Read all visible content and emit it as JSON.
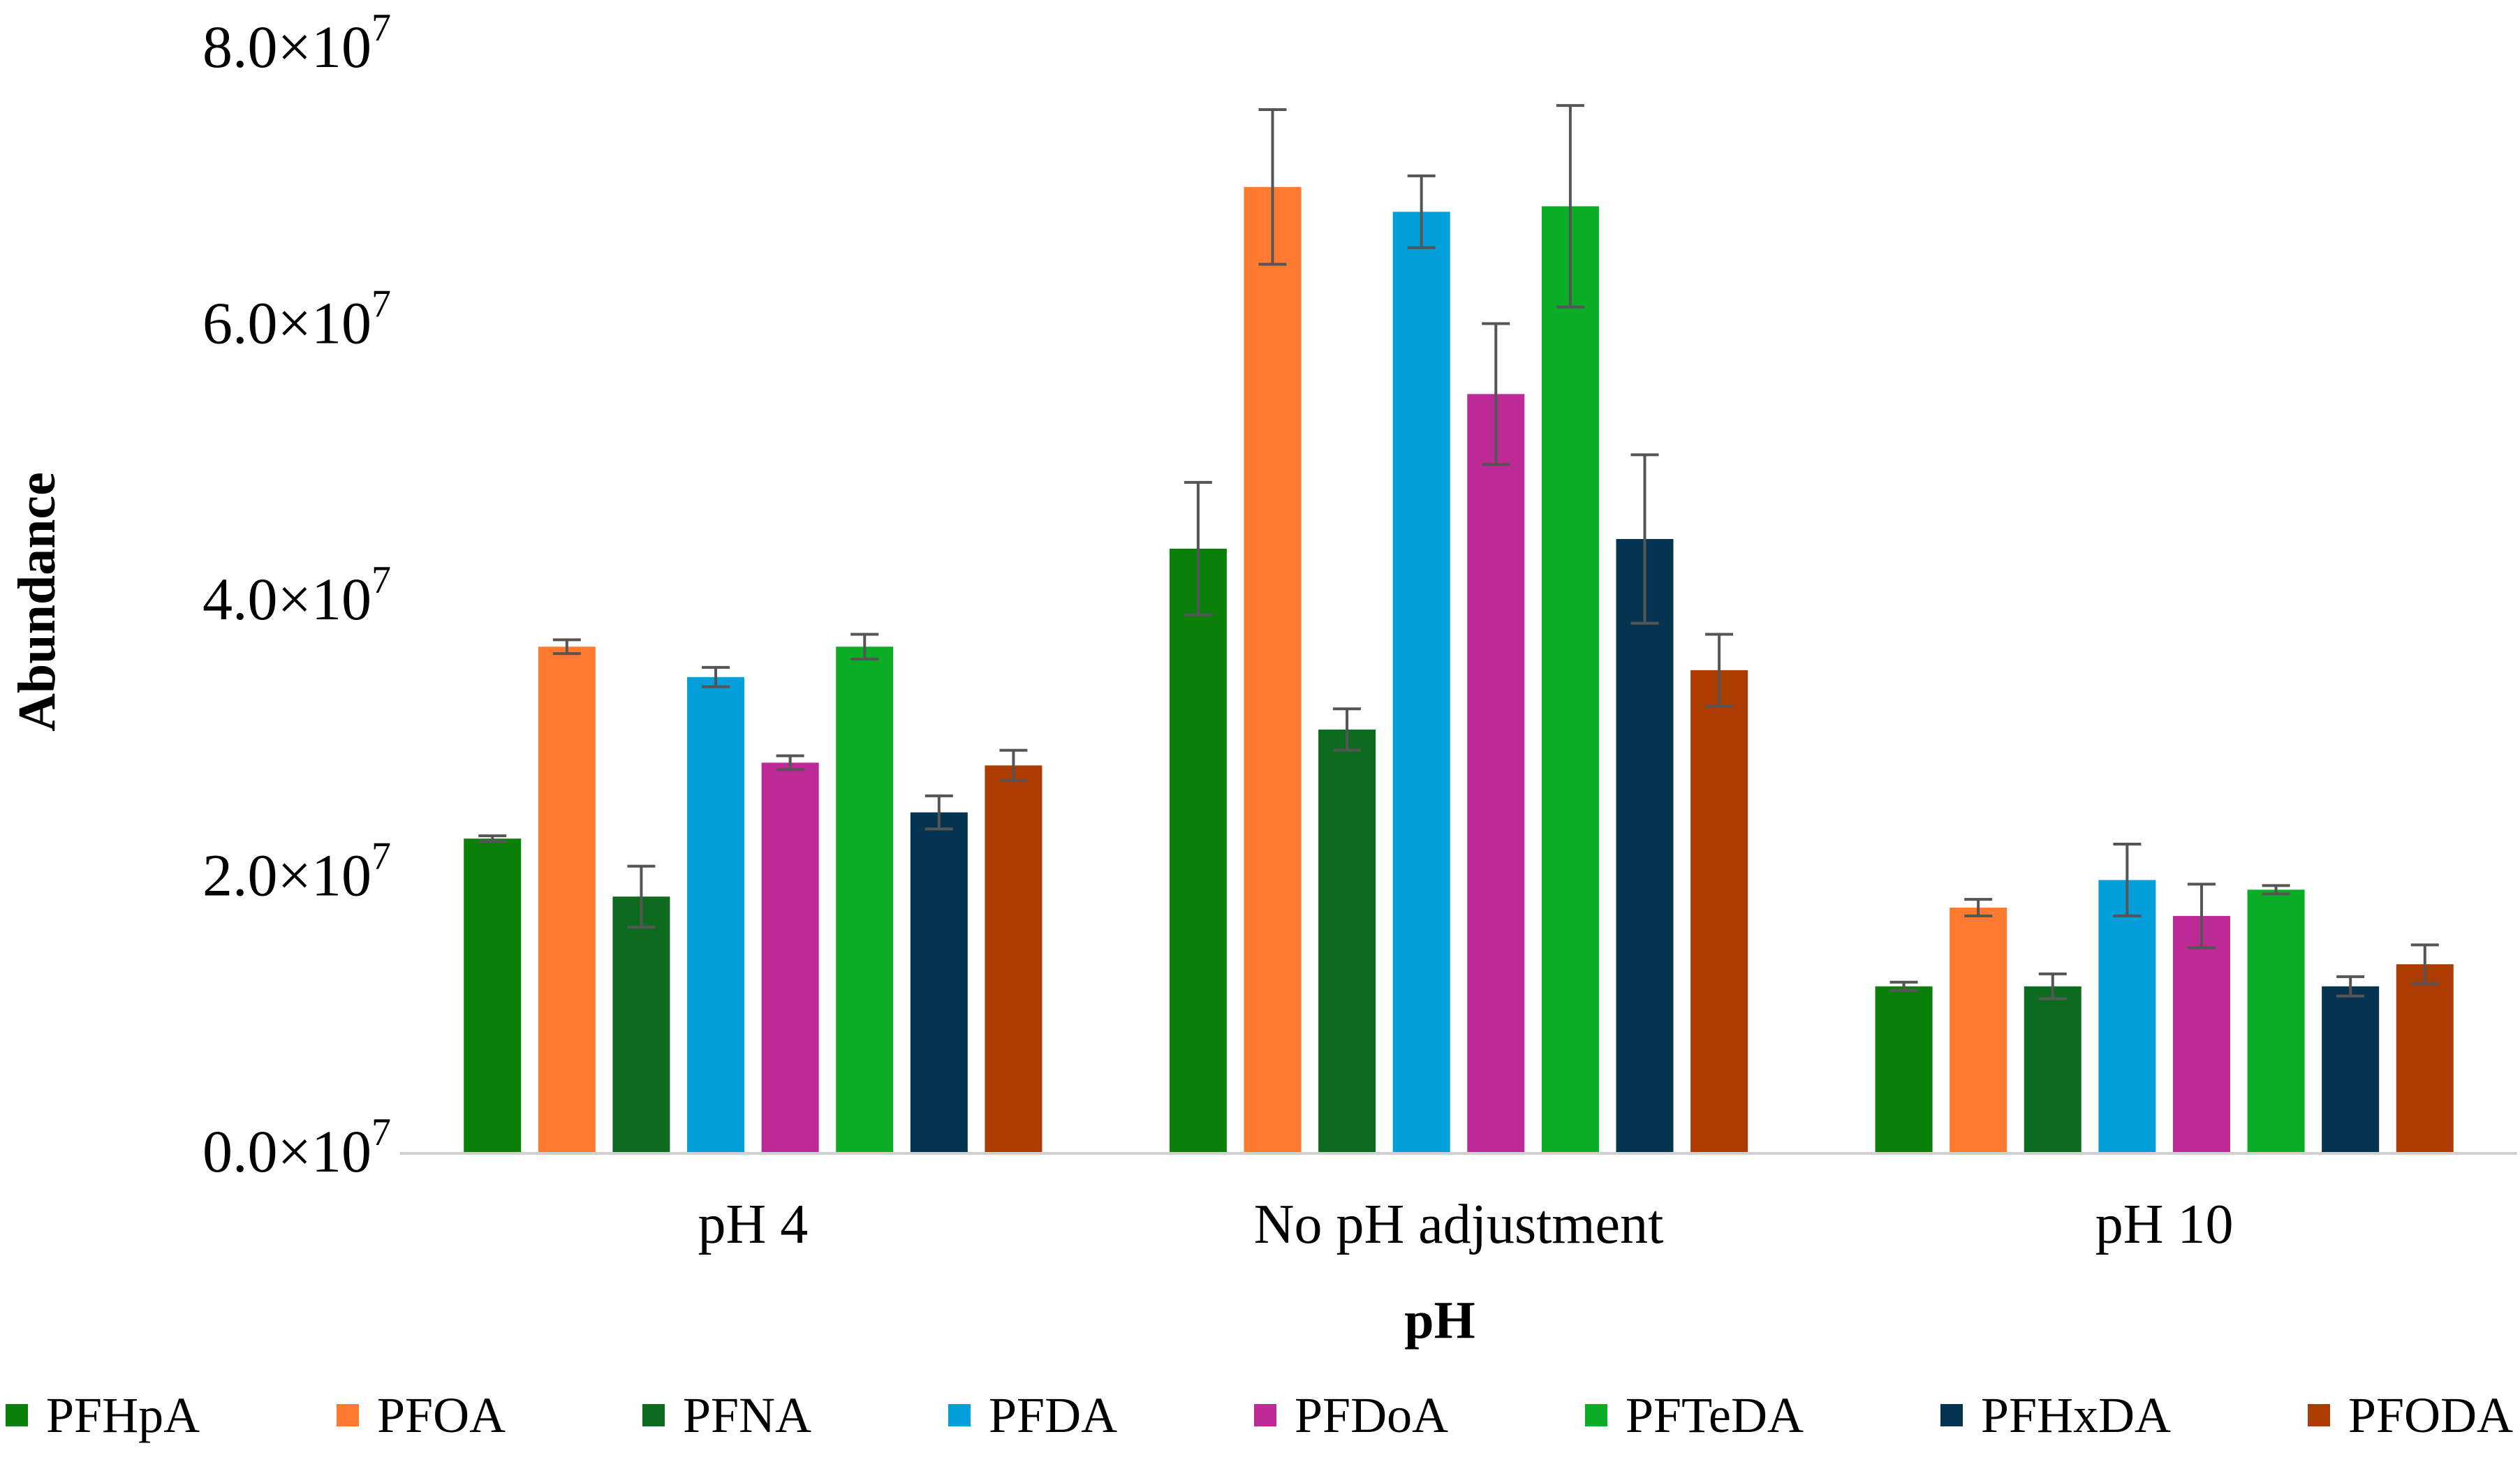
{
  "chart_data": {
    "type": "bar",
    "title": "",
    "xlabel": "pH",
    "ylabel": "Abundance",
    "ylim": [
      0,
      80000000
    ],
    "yticks": [
      0,
      20000000,
      40000000,
      60000000,
      80000000
    ],
    "ytick_labels": [
      {
        "mantissa": "0.0×10",
        "exp": "7"
      },
      {
        "mantissa": "2.0×10",
        "exp": "7"
      },
      {
        "mantissa": "4.0×10",
        "exp": "7"
      },
      {
        "mantissa": "6.0×10",
        "exp": "7"
      },
      {
        "mantissa": "8.0×10",
        "exp": "7"
      }
    ],
    "categories": [
      "pH 4",
      "No pH adjustment",
      "pH 10"
    ],
    "grid": false,
    "legend_position": "bottom",
    "series": [
      {
        "name": "PFHpA",
        "color": "#0a7f0a",
        "values": [
          22800000,
          43800000,
          12100000
        ],
        "errors": [
          200000,
          4800000,
          300000
        ]
      },
      {
        "name": "PFOA",
        "color": "#ff7a2f",
        "values": [
          36700000,
          70000000,
          17800000
        ],
        "errors": [
          500000,
          5600000,
          600000
        ]
      },
      {
        "name": "PFNA",
        "color": "#0d6b1f",
        "values": [
          18600000,
          30700000,
          12100000
        ],
        "errors": [
          2200000,
          1500000,
          900000
        ]
      },
      {
        "name": "PFDA",
        "color": "#039fdb",
        "values": [
          34500000,
          68200000,
          19800000
        ],
        "errors": [
          700000,
          2600000,
          2600000
        ]
      },
      {
        "name": "PFDoA",
        "color": "#bd2a96",
        "values": [
          28300000,
          55000000,
          17200000
        ],
        "errors": [
          500000,
          5100000,
          2300000
        ]
      },
      {
        "name": "PFTeDA",
        "color": "#0aad25",
        "values": [
          36700000,
          68600000,
          19100000
        ],
        "errors": [
          900000,
          7300000,
          300000
        ]
      },
      {
        "name": "PFHxDA",
        "color": "#04344f",
        "values": [
          24700000,
          44500000,
          12100000
        ],
        "errors": [
          1200000,
          6100000,
          700000
        ]
      },
      {
        "name": "PFODA",
        "color": "#ad3c03",
        "values": [
          28100000,
          35000000,
          13700000
        ],
        "errors": [
          1100000,
          2600000,
          1400000
        ]
      }
    ]
  }
}
